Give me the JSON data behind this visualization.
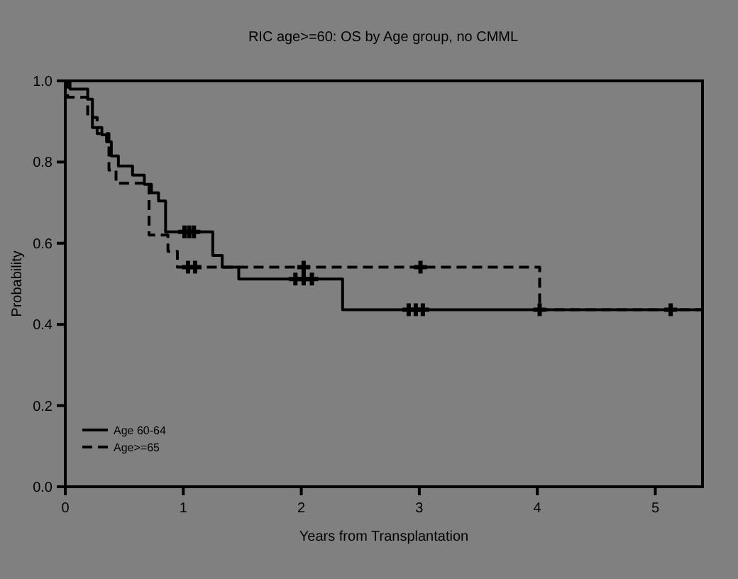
{
  "chart_data": {
    "type": "step",
    "title": "RIC age>=60: OS by Age group, no CMML",
    "xlabel": "Years from Transplantation",
    "ylabel": "Probability",
    "xlim": [
      0,
      5.4
    ],
    "xticks": [
      0,
      1,
      2,
      3,
      4,
      5
    ],
    "ylim": [
      0,
      1
    ],
    "yticks": [
      {
        "value": 0,
        "label": "0.0"
      },
      {
        "value": 0.2,
        "label": "0.2"
      },
      {
        "value": 0.4,
        "label": "0.4"
      },
      {
        "value": 0.6,
        "label": "0.6"
      },
      {
        "value": 0.8,
        "label": "0.8"
      },
      {
        "value": 1,
        "label": "1.0"
      }
    ],
    "grid": false,
    "legend": "bottom left",
    "series": [
      {
        "name": "Age 60-64",
        "color": "#000000",
        "line_style": "solid",
        "x": [
          0,
          0.04,
          0.19,
          0.23,
          0.31,
          0.35,
          0.39,
          0.45,
          0.57,
          0.67,
          0.73,
          0.79,
          0.85,
          1.25,
          1.33,
          1.47,
          2.35,
          5.39
        ],
        "values": [
          1,
          0.98,
          0.955,
          0.885,
          0.867,
          0.85,
          0.815,
          0.79,
          0.768,
          0.745,
          0.724,
          0.704,
          0.628,
          0.57,
          0.541,
          0.512,
          0.436,
          0.436
        ]
      },
      {
        "name": "Age>=65",
        "color": "#000000",
        "line_style": "dashed",
        "x": [
          0,
          0.02,
          0.19,
          0.27,
          0.37,
          0.43,
          0.71,
          0.87,
          0.95,
          4.02,
          5.39
        ],
        "values": [
          1,
          0.96,
          0.91,
          0.87,
          0.78,
          0.748,
          0.62,
          0.58,
          0.541,
          0.436,
          0.436
        ]
      },
      {
        "type": "scatter",
        "marker": "cross",
        "color": "#000000",
        "x": [
          1.01,
          1.05,
          1.09,
          1.95,
          2.02,
          2.09,
          2.91,
          2.97,
          3.03,
          5.13
        ],
        "values": [
          0.628,
          0.628,
          0.628,
          0.512,
          0.512,
          0.512,
          0.436,
          0.436,
          0.436,
          0.436
        ]
      },
      {
        "type": "scatter",
        "marker": "cross",
        "color": "#000000",
        "x": [
          1.04,
          1.1,
          2.02,
          3.01,
          4.02
        ],
        "values": [
          0.541,
          0.541,
          0.541,
          0.541,
          0.436
        ]
      }
    ]
  }
}
